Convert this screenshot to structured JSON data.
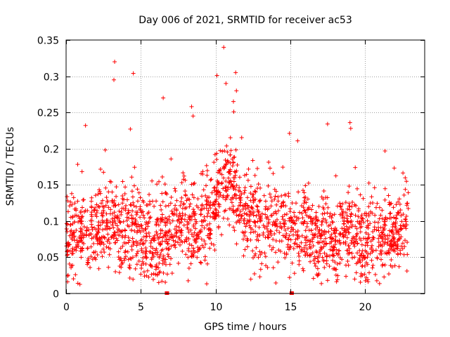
{
  "chart_data": {
    "type": "scatter",
    "title": "Day 006 of 2021, SRMTID for receiver ac53",
    "xlabel": "GPS time / hours",
    "ylabel": "SRMTID / TECUs",
    "xlim": [
      0,
      24
    ],
    "ylim": [
      0,
      0.35
    ],
    "xticks": [
      0,
      5,
      10,
      15,
      20
    ],
    "xtick_labels": [
      "0",
      "5",
      "10",
      "15",
      "20"
    ],
    "yticks": [
      0,
      0.05,
      0.1,
      0.15,
      0.2,
      0.25,
      0.3,
      0.35
    ],
    "ytick_labels": [
      "0",
      "0.05",
      "0.1",
      "0.15",
      "0.2",
      "0.25",
      "0.3",
      "0.35"
    ],
    "grid": true,
    "marker": "+",
    "colors": {
      "points": "#ff0000",
      "grid": "#a0a0a0",
      "axes": "#000000"
    },
    "series": [
      {
        "name": "SRMTID",
        "description": "approx. 2000 plus-markers sampled along a noisy band",
        "time_range_hours": [
          0,
          22.9
        ],
        "baseline_profile": [
          [
            0,
            0.075
          ],
          [
            1,
            0.085
          ],
          [
            2,
            0.09
          ],
          [
            3,
            0.095
          ],
          [
            4,
            0.09
          ],
          [
            5,
            0.08
          ],
          [
            6,
            0.07
          ],
          [
            7,
            0.085
          ],
          [
            8,
            0.1
          ],
          [
            9,
            0.09
          ],
          [
            10,
            0.12
          ],
          [
            10.5,
            0.16
          ],
          [
            11,
            0.15
          ],
          [
            12,
            0.11
          ],
          [
            13,
            0.09
          ],
          [
            14,
            0.1
          ],
          [
            15,
            0.095
          ],
          [
            16,
            0.085
          ],
          [
            17,
            0.075
          ],
          [
            18,
            0.075
          ],
          [
            19,
            0.08
          ],
          [
            20,
            0.07
          ],
          [
            21,
            0.07
          ],
          [
            22,
            0.08
          ],
          [
            22.9,
            0.1
          ]
        ],
        "notable_points": [
          {
            "x": 3.25,
            "y": 0.32
          },
          {
            "x": 3.2,
            "y": 0.295
          },
          {
            "x": 4.5,
            "y": 0.304
          },
          {
            "x": 10.55,
            "y": 0.34
          },
          {
            "x": 10.1,
            "y": 0.301
          },
          {
            "x": 10.7,
            "y": 0.29
          },
          {
            "x": 11.35,
            "y": 0.305
          },
          {
            "x": 11.4,
            "y": 0.28
          },
          {
            "x": 11.2,
            "y": 0.265
          },
          {
            "x": 6.5,
            "y": 0.27
          },
          {
            "x": 8.4,
            "y": 0.258
          },
          {
            "x": 8.5,
            "y": 0.245
          },
          {
            "x": 1.3,
            "y": 0.232
          },
          {
            "x": 17.5,
            "y": 0.234
          },
          {
            "x": 19,
            "y": 0.236
          },
          {
            "x": 14.95,
            "y": 0.221
          },
          {
            "x": 4.3,
            "y": 0.227
          },
          {
            "x": 19.05,
            "y": 0.228
          },
          {
            "x": 3.3,
            "y": 0.03
          },
          {
            "x": 6.2,
            "y": 0.015
          },
          {
            "x": 7.1,
            "y": 0.028
          },
          {
            "x": 14.95,
            "y": 0.022
          },
          {
            "x": 17.5,
            "y": 0.018
          },
          {
            "x": 21.6,
            "y": 0.027
          }
        ],
        "zero_points": [
          {
            "x": 6.75,
            "y": 0
          },
          {
            "x": 15.1,
            "y": 0
          }
        ]
      }
    ]
  }
}
